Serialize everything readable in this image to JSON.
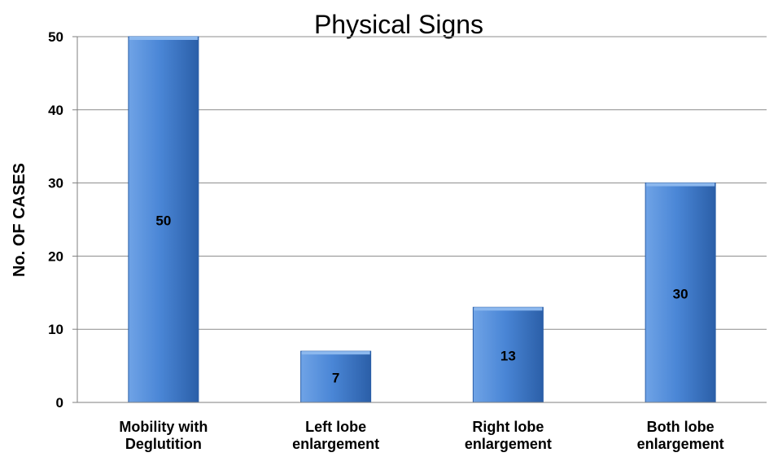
{
  "chart_data": {
    "type": "bar",
    "title": "Physical Signs",
    "ylabel": "No. OF CASES",
    "xlabel": "",
    "categories": [
      [
        "Mobility with",
        "Deglutition"
      ],
      [
        "Left lobe",
        "enlargement"
      ],
      [
        "Right lobe",
        "enlargement"
      ],
      [
        "Both lobe",
        "enlargement"
      ]
    ],
    "values": [
      50,
      7,
      13,
      30
    ],
    "data_labels": [
      "50",
      "7",
      "13",
      "30"
    ],
    "ylim": [
      0,
      50
    ],
    "yticks": [
      0,
      10,
      20,
      30,
      40,
      50
    ],
    "ytick_labels": [
      "0",
      "10",
      "20",
      "30",
      "40",
      "50"
    ],
    "grid": true,
    "legend": "none",
    "colors": {
      "bar_mid": "#4a86d6",
      "bar_light": "#6fa3e6",
      "bar_dark": "#2b5fa8",
      "bar_top": "#8cb8ee",
      "grid": "#8c8c8c",
      "axis": "#7f7f7f"
    }
  }
}
